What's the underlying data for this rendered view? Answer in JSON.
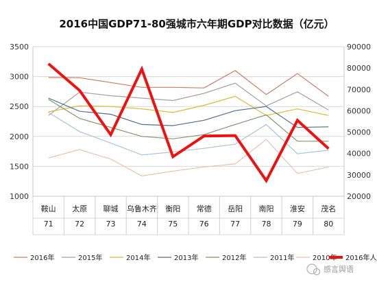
{
  "chart_data": {
    "type": "line",
    "title": "2016中国GDP71-80强城市六年期GDP对比数据（亿元）",
    "categories": [
      "鞍山",
      "太原",
      "聊城",
      "乌鲁木齐",
      "衡阳",
      "常德",
      "岳阳",
      "南阳",
      "淮安",
      "茂名"
    ],
    "ranks": [
      "71",
      "72",
      "73",
      "74",
      "75",
      "76",
      "77",
      "78",
      "79",
      "80"
    ],
    "ylim_left": [
      1000,
      3500
    ],
    "yticks_left": [
      "1000",
      "1500",
      "2000",
      "2500",
      "3000",
      "3500"
    ],
    "ylim_right": [
      20000,
      90000
    ],
    "yticks_right": [
      "20000",
      "30000",
      "40000",
      "50000",
      "60000",
      "70000",
      "80000",
      "90000"
    ],
    "grid": true,
    "legend_position": "bottom",
    "series": [
      {
        "name": "2016年",
        "axis": "left",
        "color": "#c8805f",
        "width": 1.2,
        "values": [
          2985,
          2980,
          2900,
          2820,
          2820,
          2810,
          3100,
          2700,
          3050,
          2670
        ]
      },
      {
        "name": "2015年",
        "axis": "left",
        "color": "#9ca2a8",
        "width": 1.2,
        "values": [
          2350,
          2740,
          2680,
          2640,
          2600,
          2720,
          2890,
          2510,
          2745,
          2440
        ]
      },
      {
        "name": "2014年",
        "axis": "left",
        "color": "#d8b83a",
        "width": 1.2,
        "values": [
          2410,
          2510,
          2500,
          2460,
          2400,
          2520,
          2670,
          2350,
          2460,
          2350
        ]
      },
      {
        "name": "2013年",
        "axis": "left",
        "color": "#4e6d8c",
        "width": 1.2,
        "values": [
          2640,
          2420,
          2370,
          2200,
          2180,
          2270,
          2430,
          2500,
          2150,
          2160
        ]
      },
      {
        "name": "2012年",
        "axis": "left",
        "color": "#7a9a63",
        "width": 1.2,
        "values": [
          2620,
          2300,
          2150,
          2000,
          1960,
          2030,
          2200,
          2360,
          1920,
          1920
        ]
      },
      {
        "name": "2011年",
        "axis": "left",
        "color": "#a9c3d8",
        "width": 1.2,
        "values": [
          2400,
          2080,
          1890,
          1690,
          1740,
          1800,
          1870,
          2200,
          1710,
          1770
        ]
      },
      {
        "name": "2010年",
        "axis": "left",
        "color": "#e9c2ab",
        "width": 1.2,
        "values": [
          1640,
          1780,
          1620,
          1340,
          1420,
          1490,
          1540,
          1950,
          1380,
          1490
        ]
      },
      {
        "name": "2016年人均GDP",
        "axis": "right",
        "color": "#ee1111",
        "width": 4,
        "values": [
          82000,
          69500,
          48800,
          79500,
          38500,
          48200,
          48400,
          27300,
          55500,
          42300
        ]
      }
    ]
  },
  "watermark": {
    "brand": "感言舆语"
  }
}
